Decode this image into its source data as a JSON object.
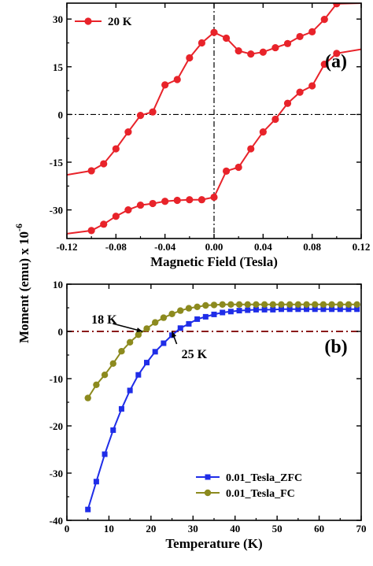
{
  "ylabel": "Moment (emu) x 10",
  "ylabel_exp": "-6",
  "chart_data": [
    {
      "type": "line",
      "panel_label": "(a)",
      "xlabel": "Magnetic Field (Tesla)",
      "xlim": [
        -0.12,
        0.12
      ],
      "ylim": [
        -39,
        35
      ],
      "xticks": [
        -0.12,
        -0.08,
        -0.04,
        0.0,
        0.04,
        0.08,
        0.12
      ],
      "xtick_labels": [
        "-0.12",
        "-0.08",
        "-0.04",
        "0.00",
        "0.04",
        "0.08",
        "0.12"
      ],
      "yticks": [
        -30,
        -15,
        0,
        15,
        30
      ],
      "ytick_labels": [
        "-30",
        "-15",
        "0",
        "15",
        "30"
      ],
      "reference_lines": [
        "y = 0",
        "x = 0"
      ],
      "legend_position": "top-left",
      "color": "#e8232a",
      "series": [
        {
          "name": "20 K",
          "branch": "upper",
          "x": [
            -0.12,
            -0.1,
            -0.09,
            -0.08,
            -0.07,
            -0.06,
            -0.05,
            -0.04,
            -0.03,
            -0.02,
            -0.01,
            0.0,
            0.01,
            0.02,
            0.03,
            0.04,
            0.05,
            0.06,
            0.07,
            0.08,
            0.09,
            0.1,
            0.12
          ],
          "y": [
            -19,
            -17.7,
            -15.5,
            -10.8,
            -5.5,
            -0.3,
            0.8,
            9.3,
            11,
            17.8,
            22.5,
            25.8,
            24,
            20,
            19,
            19.6,
            21,
            22.3,
            24.5,
            26,
            29.9,
            34.8,
            35
          ]
        },
        {
          "name": "",
          "branch": "lower",
          "x": [
            -0.12,
            -0.1,
            -0.09,
            -0.08,
            -0.07,
            -0.06,
            -0.05,
            -0.04,
            -0.03,
            -0.02,
            -0.01,
            0.0,
            0.01,
            0.02,
            0.03,
            0.04,
            0.05,
            0.06,
            0.07,
            0.08,
            0.09,
            0.1,
            0.12
          ],
          "y": [
            -37.5,
            -36.5,
            -34.5,
            -32,
            -30,
            -28.5,
            -28,
            -27.3,
            -27,
            -26.8,
            -26.8,
            -26,
            -17.8,
            -16.6,
            -10.8,
            -5.5,
            -1.5,
            3.5,
            7,
            9,
            15.8,
            19.2,
            20.5
          ]
        }
      ]
    },
    {
      "type": "line",
      "panel_label": "(b)",
      "xlabel": "Temperature (K)",
      "xlim": [
        0,
        70
      ],
      "ylim": [
        -40,
        10
      ],
      "xticks": [
        0,
        10,
        20,
        30,
        40,
        50,
        60,
        70
      ],
      "xtick_labels": [
        "0",
        "10",
        "20",
        "30",
        "40",
        "50",
        "60",
        "70"
      ],
      "yticks": [
        -40,
        -30,
        -20,
        -10,
        0,
        10
      ],
      "ytick_labels": [
        "-40",
        "-30",
        "-20",
        "-10",
        "0",
        "10"
      ],
      "reference_lines": [
        "y = 0"
      ],
      "legend_position": "bottom-right",
      "annotations": [
        {
          "text": "18 K",
          "x": 18,
          "y": 0
        },
        {
          "text": "25 K",
          "x": 25,
          "y": 0
        }
      ],
      "series": [
        {
          "name": "0.01_Tesla_ZFC",
          "color": "#1f2de8",
          "marker": "square",
          "x": [
            5,
            7,
            9,
            11,
            13,
            15,
            17,
            19,
            21,
            23,
            25,
            27,
            29,
            31,
            33,
            35,
            37,
            39,
            41,
            43,
            45,
            47,
            49,
            51,
            53,
            55,
            57,
            59,
            61,
            63,
            65,
            67,
            69
          ],
          "y": [
            -37.7,
            -31.8,
            -26,
            -20.9,
            -16.4,
            -12.5,
            -9.2,
            -6.6,
            -4.3,
            -2.5,
            -0.8,
            0.7,
            1.6,
            2.6,
            3.1,
            3.6,
            4,
            4.2,
            4.4,
            4.5,
            4.6,
            4.6,
            4.6,
            4.7,
            4.7,
            4.7,
            4.7,
            4.7,
            4.7,
            4.7,
            4.7,
            4.7,
            4.7
          ]
        },
        {
          "name": "0.01_Tesla_FC",
          "color": "#8c8a1e",
          "marker": "circle",
          "x": [
            5,
            7,
            9,
            11,
            13,
            15,
            17,
            19,
            21,
            23,
            25,
            27,
            29,
            31,
            33,
            35,
            37,
            39,
            41,
            43,
            45,
            47,
            49,
            51,
            53,
            55,
            57,
            59,
            61,
            63,
            65,
            67,
            69
          ],
          "y": [
            -14.1,
            -11.3,
            -9.2,
            -6.8,
            -4.2,
            -2.3,
            -0.7,
            0.6,
            1.9,
            2.9,
            3.7,
            4.4,
            4.9,
            5.2,
            5.5,
            5.6,
            5.7,
            5.7,
            5.7,
            5.7,
            5.7,
            5.7,
            5.7,
            5.7,
            5.7,
            5.7,
            5.7,
            5.7,
            5.7,
            5.7,
            5.7,
            5.7,
            5.7
          ]
        }
      ]
    }
  ]
}
